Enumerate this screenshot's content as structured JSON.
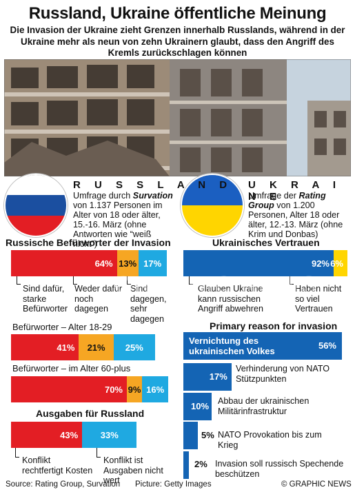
{
  "header": {
    "title": "Russland, Ukraine öffentliche Meinung",
    "subtitle": "Die Invasion der Ukraine zieht Grenzen innerhalb Russlands, während in der Ukraine mehr als neun von zehn Ukrainern glaubt, dass den Angriff des Kremls zurückschlagen können"
  },
  "russia": {
    "name": "R U S S L A N D",
    "survey_pre": "Umfrage durch ",
    "survey_org": "Survation",
    "survey_post": " von 1.137 Personen im Alter von 18 oder älter, 15.-16. März (ohne Antworten wie “weiß nicht”)"
  },
  "ukraine": {
    "name": "U K R A I N E",
    "survey_pre": "Umfrage der ",
    "survey_org": "Rating Group",
    "survey_post": " von 1.200 Personen, Alter 18 oder älter, 12.-13. März (ohne Krim und Donbas)"
  },
  "colors": {
    "red": "#e31e24",
    "orange": "#f6a623",
    "cyan": "#1fa9e1",
    "blue": "#1464b4",
    "yellow": "#ffd500",
    "flag_white": "#ffffff",
    "flag_blue": "#1b4fa0"
  },
  "chart_data": [
    {
      "type": "bar",
      "title": "Russische Befürworter der Invasion",
      "categories": [
        "Sind dafür, starke Befürworter",
        "Weder dafür noch dagegen",
        "Sind dagegen, sehr dagegen"
      ],
      "values": [
        64,
        13,
        17
      ],
      "labels": [
        "64%",
        "13%",
        "17%"
      ]
    },
    {
      "type": "bar",
      "title": "Ukrainisches Vertrauen",
      "categories": [
        "Glauben Ukraine kann russischen Angriff abwehren",
        "Haben nicht so viel Vertrauen"
      ],
      "values": [
        92,
        6
      ],
      "labels": [
        "92%",
        "6%"
      ]
    },
    {
      "type": "bar",
      "title": "Befürworter – Alter 18-29",
      "values": [
        41,
        21,
        25
      ],
      "labels": [
        "41%",
        "21%",
        "25%"
      ]
    },
    {
      "type": "bar",
      "title": "Befürworter – im Alter 60-plus",
      "values": [
        70,
        9,
        16
      ],
      "labels": [
        "70%",
        "9%",
        "16%"
      ]
    },
    {
      "type": "bar",
      "title": "Ausgaben für Russland",
      "categories": [
        "Konflikt rechtfertigt Kosten",
        "Konflikt ist Ausgaben nicht wert"
      ],
      "values": [
        43,
        33
      ],
      "labels": [
        "43%",
        "33%"
      ]
    },
    {
      "type": "bar",
      "title": "Primary reason for invasion",
      "categories": [
        "Vernichtung des ukrainischen Volkes",
        "Verhinderung von NATO Stützpunkten",
        "Abbau der ukrainischen Militärinfrastruktur",
        "NATO Provokation bis zum Krieg",
        "Invasion soll russisch Spechende beschützen"
      ],
      "values": [
        56,
        17,
        10,
        5,
        2
      ],
      "labels": [
        "56%",
        "17%",
        "10%",
        "5%",
        "2%"
      ]
    }
  ],
  "labels": {
    "ru_support": "Sind dafür, starke Befürworter",
    "ru_neutral": "Weder dafür noch dagegen",
    "ru_against": "Sind dagegen, sehr dagegen",
    "ua_yes": "Glauben Ukraine kann russischen Angriff abwehren",
    "ua_no": "Haben nicht so viel Vertrauen",
    "cost_yes": "Konflikt rechtfertigt Kosten",
    "cost_no": "Konflikt ist Ausgaben nicht wert"
  },
  "footer": {
    "source": "Source: Rating Group, Survation",
    "picture": "Picture: Getty Images",
    "credit": "© GRAPHIC NEWS"
  },
  "watermark": "GRAPHIC NEWS"
}
